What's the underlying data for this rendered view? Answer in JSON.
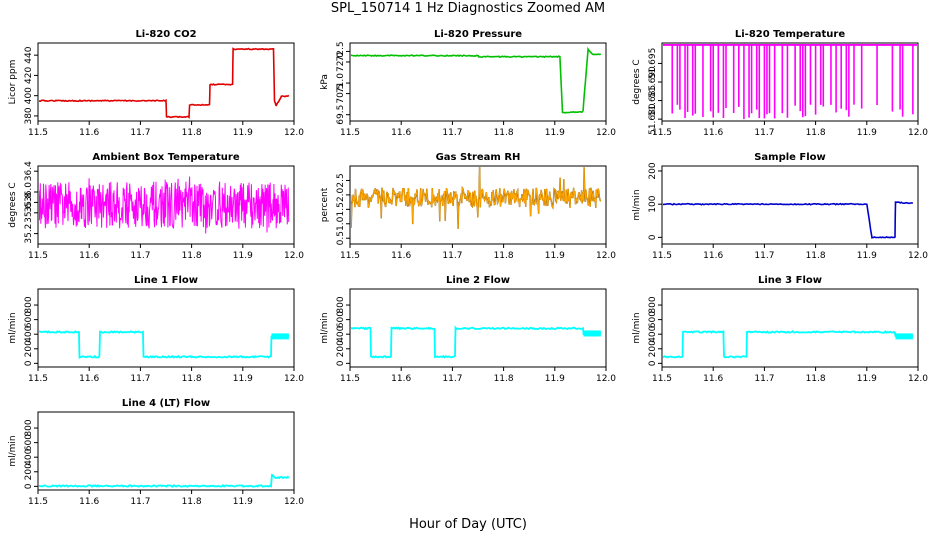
{
  "main_title": "SPL_150714  1 Hz Diagnostics Zoomed AM",
  "x_axis_label": "Hour of Day (UTC)",
  "colors": {
    "red": "#e00000",
    "green": "#00c000",
    "magenta": "#ff00ff",
    "orange": "#ffa500",
    "blue": "#0000cd",
    "cyan": "#00ffff"
  },
  "chart_data": [
    {
      "type": "line",
      "title": "Li-820 CO2",
      "ylabel": "Licor ppm",
      "xlim": [
        11.5,
        12.0
      ],
      "ylim": [
        375,
        452
      ],
      "xticks": [
        "11.5",
        "11.6",
        "11.7",
        "11.8",
        "11.9",
        "12.0"
      ],
      "yticks": [
        "380",
        "400",
        "420",
        "440"
      ],
      "color": "red",
      "series": [
        {
          "x": [
            11.5,
            11.75,
            11.751,
            11.795,
            11.796,
            11.835,
            11.836,
            11.88,
            11.881,
            11.96,
            11.962,
            11.965,
            11.975,
            11.99
          ],
          "y": [
            395,
            395,
            379,
            379,
            391,
            391,
            411,
            411,
            446,
            446,
            395,
            390,
            399,
            400
          ]
        }
      ]
    },
    {
      "type": "line",
      "title": "Li-820 Pressure",
      "ylabel": "kPa",
      "xlim": [
        11.5,
        12.0
      ],
      "ylim": [
        69.2,
        72.9
      ],
      "xticks": [
        "11.5",
        "11.6",
        "11.7",
        "11.8",
        "11.9",
        "12.0"
      ],
      "yticks": [
        "69.5",
        "70.5",
        "71.0",
        "72.0",
        "72.5"
      ],
      "color": "green",
      "series": [
        {
          "x": [
            11.5,
            11.75,
            11.751,
            11.91,
            11.915,
            11.955,
            11.965,
            11.975,
            11.99
          ],
          "y": [
            72.3,
            72.3,
            72.25,
            72.25,
            69.6,
            69.65,
            72.6,
            72.35,
            72.35
          ]
        }
      ]
    },
    {
      "type": "line",
      "title": "Li-820 Temperature",
      "ylabel": "degrees C",
      "xlim": [
        11.5,
        12.0
      ],
      "ylim": [
        51.6795,
        51.7005
      ],
      "xticks": [
        "11.5",
        "11.6",
        "11.7",
        "11.8",
        "11.9",
        "12.0"
      ],
      "yticks": [
        "51.680",
        "51.685",
        "51.690",
        "51.695"
      ],
      "color": "magenta",
      "series": [
        {
          "x": [
            11.5,
            12.0
          ],
          "y": [
            51.7,
            51.7
          ]
        }
      ]
    },
    {
      "type": "line",
      "title": "Ambient Box Temperature",
      "ylabel": "degrees C",
      "xlim": [
        11.5,
        12.0
      ],
      "ylim": [
        35.0,
        36.5
      ],
      "xticks": [
        "11.5",
        "11.6",
        "11.7",
        "11.8",
        "11.9",
        "12.0"
      ],
      "yticks": [
        "35.2",
        "35.6",
        "35.8",
        "36.0",
        "36.4"
      ],
      "color": "magenta",
      "series": [
        {
          "x": [
            11.5,
            11.99
          ],
          "y": [
            35.75,
            35.75
          ]
        }
      ]
    },
    {
      "type": "scatter",
      "title": "Gas Stream RH",
      "ylabel": "percent",
      "xlim": [
        11.5,
        12.0
      ],
      "ylim": [
        0.3,
        3.0
      ],
      "xticks": [
        "11.5",
        "11.6",
        "11.7",
        "11.8",
        "11.9",
        "12.0"
      ],
      "yticks": [
        "0.5",
        "1.0",
        "1.5",
        "2.0",
        "2.5"
      ],
      "color": "orange",
      "series": [
        {
          "x": [
            11.5,
            11.99
          ],
          "y": [
            1.9,
            1.9
          ]
        }
      ]
    },
    {
      "type": "line",
      "title": "Sample Flow",
      "ylabel": "ml/min",
      "xlim": [
        11.5,
        12.0
      ],
      "ylim": [
        -20,
        215
      ],
      "xticks": [
        "11.5",
        "11.6",
        "11.7",
        "11.8",
        "11.9",
        "12.0"
      ],
      "yticks": [
        "0",
        "100",
        "200"
      ],
      "color": "blue",
      "series": [
        {
          "x": [
            11.5,
            11.9,
            11.91,
            11.955,
            11.956,
            11.99
          ],
          "y": [
            100,
            100,
            0,
            0,
            105,
            103
          ]
        }
      ]
    },
    {
      "type": "line",
      "title": "Line 1 Flow",
      "ylabel": "ml/min",
      "xlim": [
        11.5,
        12.0
      ],
      "ylim": [
        -50,
        1020
      ],
      "xticks": [
        "11.5",
        "11.6",
        "11.7",
        "11.8",
        "11.9",
        "12.0"
      ],
      "yticks": [
        "0",
        "200",
        "400",
        "600",
        "800"
      ],
      "color": "cyan",
      "series": [
        {
          "x": [
            11.5,
            11.58,
            11.581,
            11.62,
            11.621,
            11.705,
            11.706,
            11.955,
            11.956,
            11.99
          ],
          "y": [
            430,
            430,
            90,
            90,
            430,
            430,
            90,
            90,
            370,
            370
          ]
        }
      ]
    },
    {
      "type": "line",
      "title": "Line 2 Flow",
      "ylabel": "ml/min",
      "xlim": [
        11.5,
        12.0
      ],
      "ylim": [
        -50,
        1020
      ],
      "xticks": [
        "11.5",
        "11.6",
        "11.7",
        "11.8",
        "11.9",
        "12.0"
      ],
      "yticks": [
        "0",
        "200",
        "400",
        "600",
        "800"
      ],
      "color": "cyan",
      "series": [
        {
          "x": [
            11.5,
            11.54,
            11.541,
            11.58,
            11.581,
            11.665,
            11.666,
            11.705,
            11.706,
            11.955,
            11.956,
            11.99
          ],
          "y": [
            480,
            480,
            90,
            90,
            480,
            480,
            90,
            90,
            480,
            480,
            410,
            410
          ]
        }
      ]
    },
    {
      "type": "line",
      "title": "Line 3 Flow",
      "ylabel": "ml/min",
      "xlim": [
        11.5,
        12.0
      ],
      "ylim": [
        -50,
        1020
      ],
      "xticks": [
        "11.5",
        "11.6",
        "11.7",
        "11.8",
        "11.9",
        "12.0"
      ],
      "yticks": [
        "0",
        "200",
        "400",
        "600",
        "800"
      ],
      "color": "cyan",
      "series": [
        {
          "x": [
            11.5,
            11.54,
            11.541,
            11.62,
            11.621,
            11.665,
            11.666,
            11.955,
            11.956,
            11.99
          ],
          "y": [
            90,
            90,
            430,
            430,
            90,
            90,
            430,
            430,
            370,
            370
          ]
        }
      ]
    },
    {
      "type": "line",
      "title": "Line 4 (LT) Flow",
      "ylabel": "ml/min",
      "xlim": [
        11.5,
        12.0
      ],
      "ylim": [
        -50,
        1020
      ],
      "xticks": [
        "11.5",
        "11.6",
        "11.7",
        "11.8",
        "11.9",
        "12.0"
      ],
      "yticks": [
        "0",
        "200",
        "400",
        "600",
        "800"
      ],
      "color": "cyan",
      "series": [
        {
          "x": [
            11.5,
            11.955,
            11.957,
            11.962,
            11.99
          ],
          "y": [
            5,
            5,
            170,
            120,
            120
          ]
        }
      ]
    }
  ]
}
